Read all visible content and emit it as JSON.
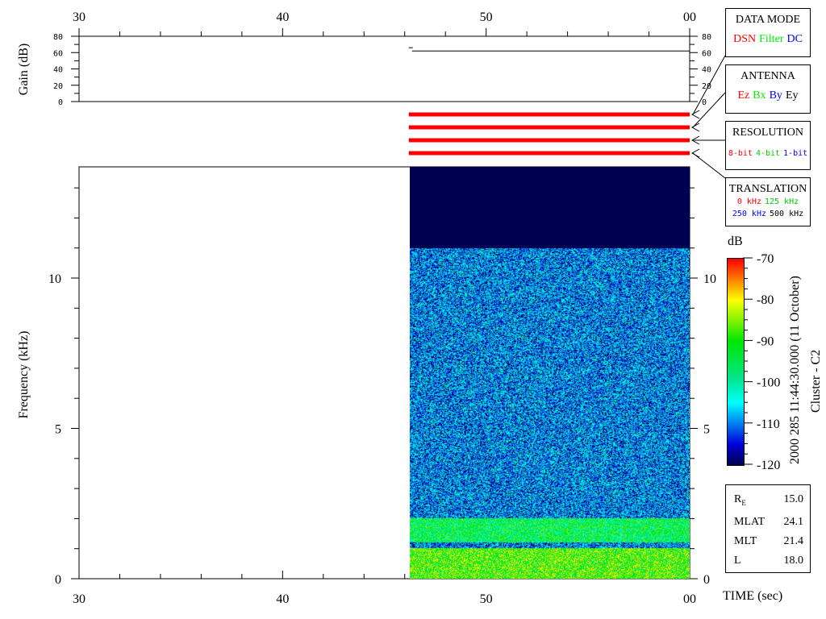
{
  "chart_data": {
    "type": "heatmap",
    "time_axis": {
      "label": "TIME (sec)",
      "ticks": [
        "30",
        "40",
        "50",
        "00"
      ],
      "range": [
        30,
        60
      ]
    },
    "gain_panel": {
      "ylabel": "Gain (dB)",
      "ticks": [
        "0",
        "20",
        "40",
        "60",
        "80"
      ],
      "ylim": [
        0,
        80
      ],
      "gain_value_db": 62,
      "data_start_sec": 46.2
    },
    "spectrogram": {
      "ylabel": "Frequency (kHz)",
      "ticks": [
        "0",
        "5",
        "10"
      ],
      "ylim": [
        0,
        13.7
      ],
      "data_start_sec": 46.2,
      "bands": [
        {
          "freq_khz": [
            0,
            1
          ],
          "level_db": -88
        },
        {
          "freq_khz": [
            1.2,
            2
          ],
          "level_db": -95
        },
        {
          "freq_khz": [
            2,
            11
          ],
          "level_db": -110
        },
        {
          "freq_khz": [
            11,
            13.7
          ],
          "level_db": -125
        }
      ]
    },
    "colorbar": {
      "label": "dB",
      "ticks": [
        "-70",
        "-80",
        "-90",
        "-100",
        "-110",
        "-120"
      ],
      "range": [
        -120,
        -70
      ]
    },
    "status_bars": 4,
    "title_vertical": "2000 285 11:44:30.000 (11 October)",
    "subtitle_vertical": "Cluster - C2"
  },
  "legend": {
    "data_mode": {
      "title": "DATA MODE",
      "items": [
        {
          "t": "DSN",
          "c": "#ff0000"
        },
        {
          "t": "Filter",
          "c": "#00ee00"
        },
        {
          "t": "DC",
          "c": "#0000ff"
        }
      ]
    },
    "antenna": {
      "title": "ANTENNA",
      "items": [
        {
          "t": "Ez",
          "c": "#ff0000"
        },
        {
          "t": "Bx",
          "c": "#00ee00"
        },
        {
          "t": "By",
          "c": "#0000ff"
        },
        {
          "t": "Ey",
          "c": "#000000"
        }
      ]
    },
    "resolution": {
      "title": "RESOLUTION",
      "items": [
        {
          "t": "8-bit",
          "c": "#ff0000"
        },
        {
          "t": "4-bit",
          "c": "#00cc00"
        },
        {
          "t": "1-bit",
          "c": "#0000ff"
        }
      ]
    },
    "translation": {
      "title": "TRANSLATION",
      "items": [
        {
          "t": "0 kHz",
          "c": "#ff0000"
        },
        {
          "t": "125 kHz",
          "c": "#00cc00"
        },
        {
          "t": "250 kHz",
          "c": "#0000ff"
        },
        {
          "t": "500 kHz",
          "c": "#000000"
        }
      ]
    }
  },
  "orbit": {
    "rows": [
      {
        "k": "R",
        "sub": "E",
        "v": "15.0"
      },
      {
        "k": "MLAT",
        "v": "24.1"
      },
      {
        "k": "MLT",
        "v": "21.4"
      },
      {
        "k": "L",
        "v": "18.0"
      }
    ]
  }
}
